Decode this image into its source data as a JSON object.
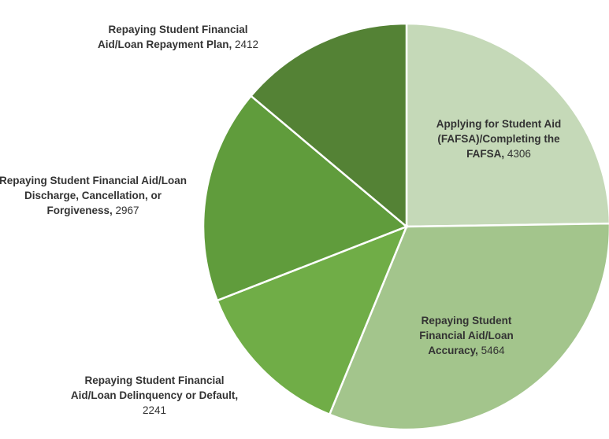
{
  "chart_data": {
    "type": "pie",
    "categories": [
      "Applying for Student Aid (FAFSA)/Completing the FAFSA,",
      "Repaying Student Financial Aid/Loan Accuracy,",
      "Repaying Student Financial Aid/Loan Delinquency or Default,",
      "Repaying Student Financial Aid/Loan Discharge, Cancellation, or Forgiveness,",
      "Repaying Student Financial Aid/Loan Repayment Plan,"
    ],
    "values": [
      4306,
      5464,
      2241,
      2967,
      2412
    ],
    "colors": [
      "#c5d9b8",
      "#a3c58c",
      "#70ad47",
      "#609c3c",
      "#548235"
    ]
  }
}
